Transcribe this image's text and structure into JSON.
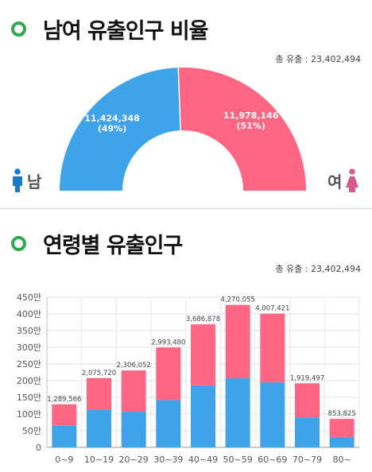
{
  "sections": {
    "gender": {
      "title": "남여 유출인구 비율",
      "total": "총 유출 : 23,402,494"
    },
    "age": {
      "title": "연령별 유출인구",
      "total": "총 유출 : 23,402,494"
    }
  },
  "colors": {
    "male": "#3ea3e8",
    "female": "#fe6683",
    "accent": "#2eaa4e"
  },
  "icons": {
    "male": "male-person-icon",
    "female": "female-person-icon"
  },
  "chart_data": [
    {
      "type": "pie",
      "title": "",
      "slices": [
        {
          "label": "남",
          "value": 11424348,
          "value_label": "11,424,348",
          "percent_label": "(49%)"
        },
        {
          "label": "여",
          "value": 11978146,
          "value_label": "11,978,146",
          "percent_label": "(51%)"
        }
      ]
    },
    {
      "type": "bar",
      "stacked": true,
      "title": "",
      "categories": [
        "0~9",
        "10~19",
        "20~29",
        "30~39",
        "40~49",
        "50~59",
        "60~69",
        "70~79",
        "80~"
      ],
      "totals": [
        1289566,
        2075720,
        2306052,
        2993480,
        3686878,
        4270055,
        4007421,
        1919497,
        853825
      ],
      "total_labels": [
        "1,289,566",
        "2,075,720",
        "2,306,052",
        "2,993,480",
        "3,686,878",
        "4,270,055",
        "4,007,421",
        "1,919,497",
        "853,825"
      ],
      "series": [
        {
          "values": [
            650000,
            1120000,
            1070000,
            1420000,
            1860000,
            2070000,
            1950000,
            900000,
            300000
          ]
        },
        {
          "values": [
            639566,
            955720,
            1236052,
            1573480,
            1826878,
            2200055,
            2057421,
            1019497,
            553825
          ]
        }
      ],
      "yticks": [
        "0",
        "50만",
        "100만",
        "150만",
        "200만",
        "250만",
        "300만",
        "350만",
        "400만",
        "450만"
      ],
      "ylim": [
        0,
        4500000
      ],
      "grid": true
    }
  ]
}
